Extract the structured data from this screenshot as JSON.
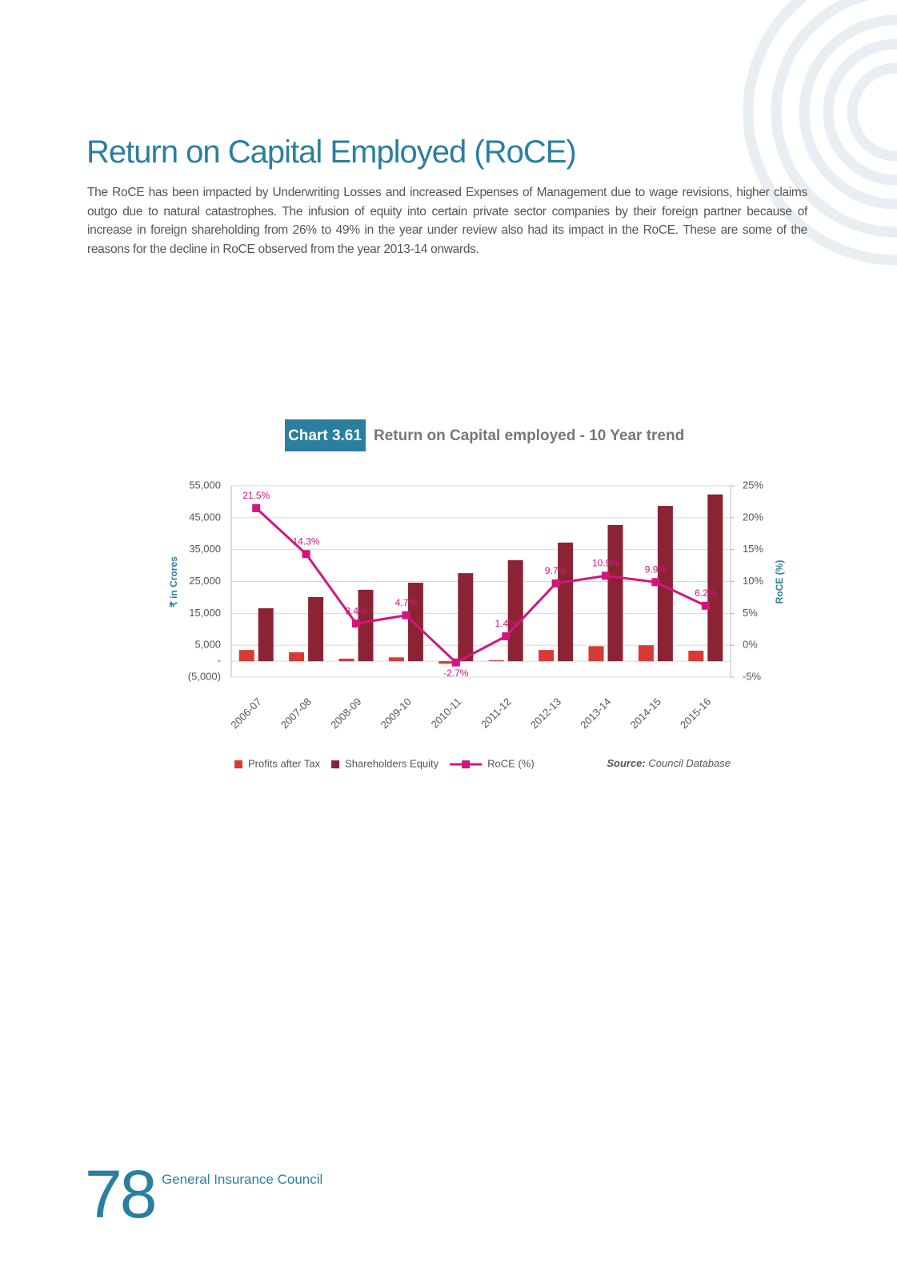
{
  "heading": "Return on Capital Employed (RoCE)",
  "paragraph": "The RoCE has been impacted by Underwriting Losses and increased Expenses of Management due to wage revisions, higher claims outgo due to natural catastrophes. The infusion of equity into certain private sector companies by their foreign partner because of increase in foreign shareholding from 26% to 49% in the year under review also had its impact in the RoCE. These are some of the reasons for the decline in RoCE observed from the year 2013-14 onwards.",
  "chart_data": {
    "type": "bar",
    "chart_label": "Chart 3.61",
    "title": "Return on Capital employed - 10 Year trend",
    "y_label": "₹ in Crores",
    "y2_label": "RoCE (%)",
    "categories": [
      "2006-07",
      "2007-08",
      "2008-09",
      "2009-10",
      "2010-11",
      "2011-12",
      "2012-13",
      "2013-14",
      "2014-15",
      "2015-16"
    ],
    "series": [
      {
        "name": "Profits after Tax",
        "type": "bar",
        "color": "#d93a35",
        "values": [
          3500,
          2800,
          800,
          1200,
          -800,
          300,
          3500,
          4700,
          5000,
          3300
        ]
      },
      {
        "name": "Shareholders Equity",
        "type": "bar",
        "color": "#8b2335",
        "values": [
          16600,
          20100,
          22400,
          24600,
          27600,
          31700,
          37200,
          42700,
          48700,
          52300
        ]
      },
      {
        "name": "RoCE (%)",
        "type": "line",
        "axis": "y2",
        "color": "#d4157f",
        "values": [
          21.5,
          14.3,
          3.4,
          4.7,
          -2.7,
          1.4,
          9.7,
          10.9,
          9.9,
          6.2
        ],
        "value_labels": [
          "21.5%",
          "14.3%",
          "3.4%",
          "4.7%",
          "-2.7%",
          "1.4%",
          "9.7%",
          "10.9%",
          "9.9%",
          "6.2%"
        ]
      }
    ],
    "ylim": [
      -5000,
      55000
    ],
    "yticks": [
      {
        "value": -5000,
        "label": "(5,000)"
      },
      {
        "value": 0,
        "label": "-"
      },
      {
        "value": 5000,
        "label": "5,000"
      },
      {
        "value": 15000,
        "label": "15,000"
      },
      {
        "value": 25000,
        "label": "25,000"
      },
      {
        "value": 35000,
        "label": "35,000"
      },
      {
        "value": 45000,
        "label": "45,000"
      },
      {
        "value": 55000,
        "label": "55,000"
      }
    ],
    "y2lim": [
      -5,
      25
    ],
    "y2ticks": [
      {
        "value": -5,
        "label": "-5%"
      },
      {
        "value": 0,
        "label": "0%"
      },
      {
        "value": 5,
        "label": "5%"
      },
      {
        "value": 10,
        "label": "10%"
      },
      {
        "value": 15,
        "label": "15%"
      },
      {
        "value": 20,
        "label": "20%"
      },
      {
        "value": 25,
        "label": "25%"
      }
    ],
    "grid": true,
    "legend": "bottom",
    "source_label": "Source:",
    "source": "Council Database"
  },
  "footer": {
    "page_number": "78",
    "publisher": "General Insurance Council"
  }
}
